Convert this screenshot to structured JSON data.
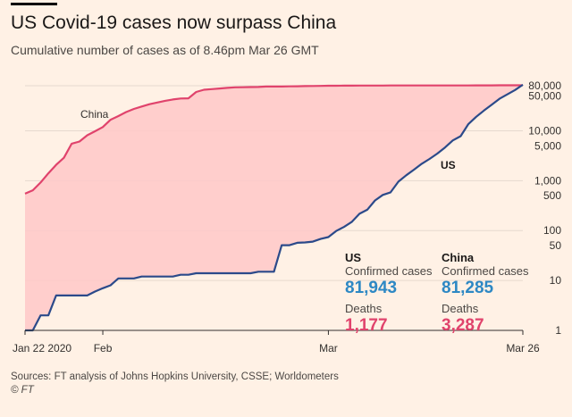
{
  "header": {
    "title": "US Covid-19 cases now surpass China",
    "subtitle": "Cumulative number of cases as of 8.46pm Mar 26 GMT"
  },
  "chart_data": {
    "type": "area",
    "yscale": "log",
    "ylim": [
      1,
      80000
    ],
    "yticks": [
      {
        "value": 80000,
        "label": "80,000"
      },
      {
        "value": 50000,
        "label": "50,000"
      },
      {
        "value": 10000,
        "label": "10,000"
      },
      {
        "value": 5000,
        "label": "5,000"
      },
      {
        "value": 1000,
        "label": "1,000"
      },
      {
        "value": 500,
        "label": "500"
      },
      {
        "value": 100,
        "label": "100"
      },
      {
        "value": 50,
        "label": "50"
      },
      {
        "value": 10,
        "label": "10"
      },
      {
        "value": 1,
        "label": "1"
      }
    ],
    "gridlines": [
      80000,
      10000,
      1000,
      100,
      10
    ],
    "xticks": [
      {
        "date": "2020-01-22",
        "label": "Jan 22 2020"
      },
      {
        "date": "2020-02-01",
        "label": "Feb"
      },
      {
        "date": "2020-03-01",
        "label": "Mar"
      },
      {
        "date": "2020-03-26",
        "label": "Mar 26"
      }
    ],
    "x": [
      "2020-01-22",
      "2020-01-23",
      "2020-01-24",
      "2020-01-25",
      "2020-01-26",
      "2020-01-27",
      "2020-01-28",
      "2020-01-29",
      "2020-01-30",
      "2020-01-31",
      "2020-02-01",
      "2020-02-02",
      "2020-02-03",
      "2020-02-04",
      "2020-02-05",
      "2020-02-06",
      "2020-02-07",
      "2020-02-08",
      "2020-02-09",
      "2020-02-10",
      "2020-02-11",
      "2020-02-12",
      "2020-02-13",
      "2020-02-14",
      "2020-02-15",
      "2020-02-16",
      "2020-02-17",
      "2020-02-18",
      "2020-02-19",
      "2020-02-20",
      "2020-02-21",
      "2020-02-22",
      "2020-02-23",
      "2020-02-24",
      "2020-02-25",
      "2020-02-26",
      "2020-02-27",
      "2020-02-28",
      "2020-02-29",
      "2020-03-01",
      "2020-03-02",
      "2020-03-03",
      "2020-03-04",
      "2020-03-05",
      "2020-03-06",
      "2020-03-07",
      "2020-03-08",
      "2020-03-09",
      "2020-03-10",
      "2020-03-11",
      "2020-03-12",
      "2020-03-13",
      "2020-03-14",
      "2020-03-15",
      "2020-03-16",
      "2020-03-17",
      "2020-03-18",
      "2020-03-19",
      "2020-03-20",
      "2020-03-21",
      "2020-03-22",
      "2020-03-23",
      "2020-03-24",
      "2020-03-25",
      "2020-03-26"
    ],
    "series": [
      {
        "name": "China",
        "color": "#e0436c",
        "values": [
          548,
          643,
          920,
          1406,
          2075,
          2877,
          5509,
          6087,
          8141,
          9802,
          11891,
          16630,
          19716,
          23707,
          27440,
          30587,
          34110,
          36814,
          39829,
          42354,
          44386,
          44759,
          59895,
          66358,
          68413,
          70513,
          72434,
          74211,
          74619,
          75077,
          75550,
          77001,
          77022,
          77241,
          77754,
          78166,
          78600,
          78928,
          79356,
          79932,
          80136,
          80261,
          80386,
          80537,
          80690,
          80770,
          80823,
          80860,
          80887,
          80921,
          80932,
          80945,
          80977,
          81003,
          81033,
          81058,
          81102,
          81156,
          81250,
          81305,
          81435,
          81498,
          81591,
          81661,
          81782
        ]
      },
      {
        "name": "US",
        "color": "#2b4a8a",
        "values": [
          1,
          1,
          2,
          2,
          5,
          5,
          5,
          5,
          5,
          6,
          7,
          8,
          11,
          11,
          11,
          12,
          12,
          12,
          12,
          12,
          13,
          13,
          14,
          14,
          14,
          14,
          14,
          14,
          14,
          14,
          15,
          15,
          15,
          51,
          51,
          57,
          58,
          60,
          68,
          74,
          98,
          118,
          149,
          217,
          262,
          402,
          518,
          583,
          959,
          1281,
          1663,
          2179,
          2727,
          3499,
          4632,
          6421,
          7786,
          13680,
          19101,
          25493,
          33276,
          43847,
          53740,
          65778,
          83836
        ]
      }
    ]
  },
  "stats": {
    "us": {
      "country": "US",
      "confirmed_label": "Confirmed cases",
      "confirmed": "81,943",
      "deaths_label": "Deaths",
      "deaths": "1,177"
    },
    "china": {
      "country": "China",
      "confirmed_label": "Confirmed cases",
      "confirmed": "81,285",
      "deaths_label": "Deaths",
      "deaths": "3,287"
    }
  },
  "footer": {
    "source": "Sources: FT analysis of Johns Hopkins University, CSSE; Worldometers",
    "copyright": "© FT"
  },
  "colors": {
    "background": "#fff1e5",
    "fill": "#ffc8c8",
    "confirmed": "#2d88c4",
    "deaths": "#e0436c",
    "grid": "#e6d9ce",
    "axis": "#33302e"
  }
}
